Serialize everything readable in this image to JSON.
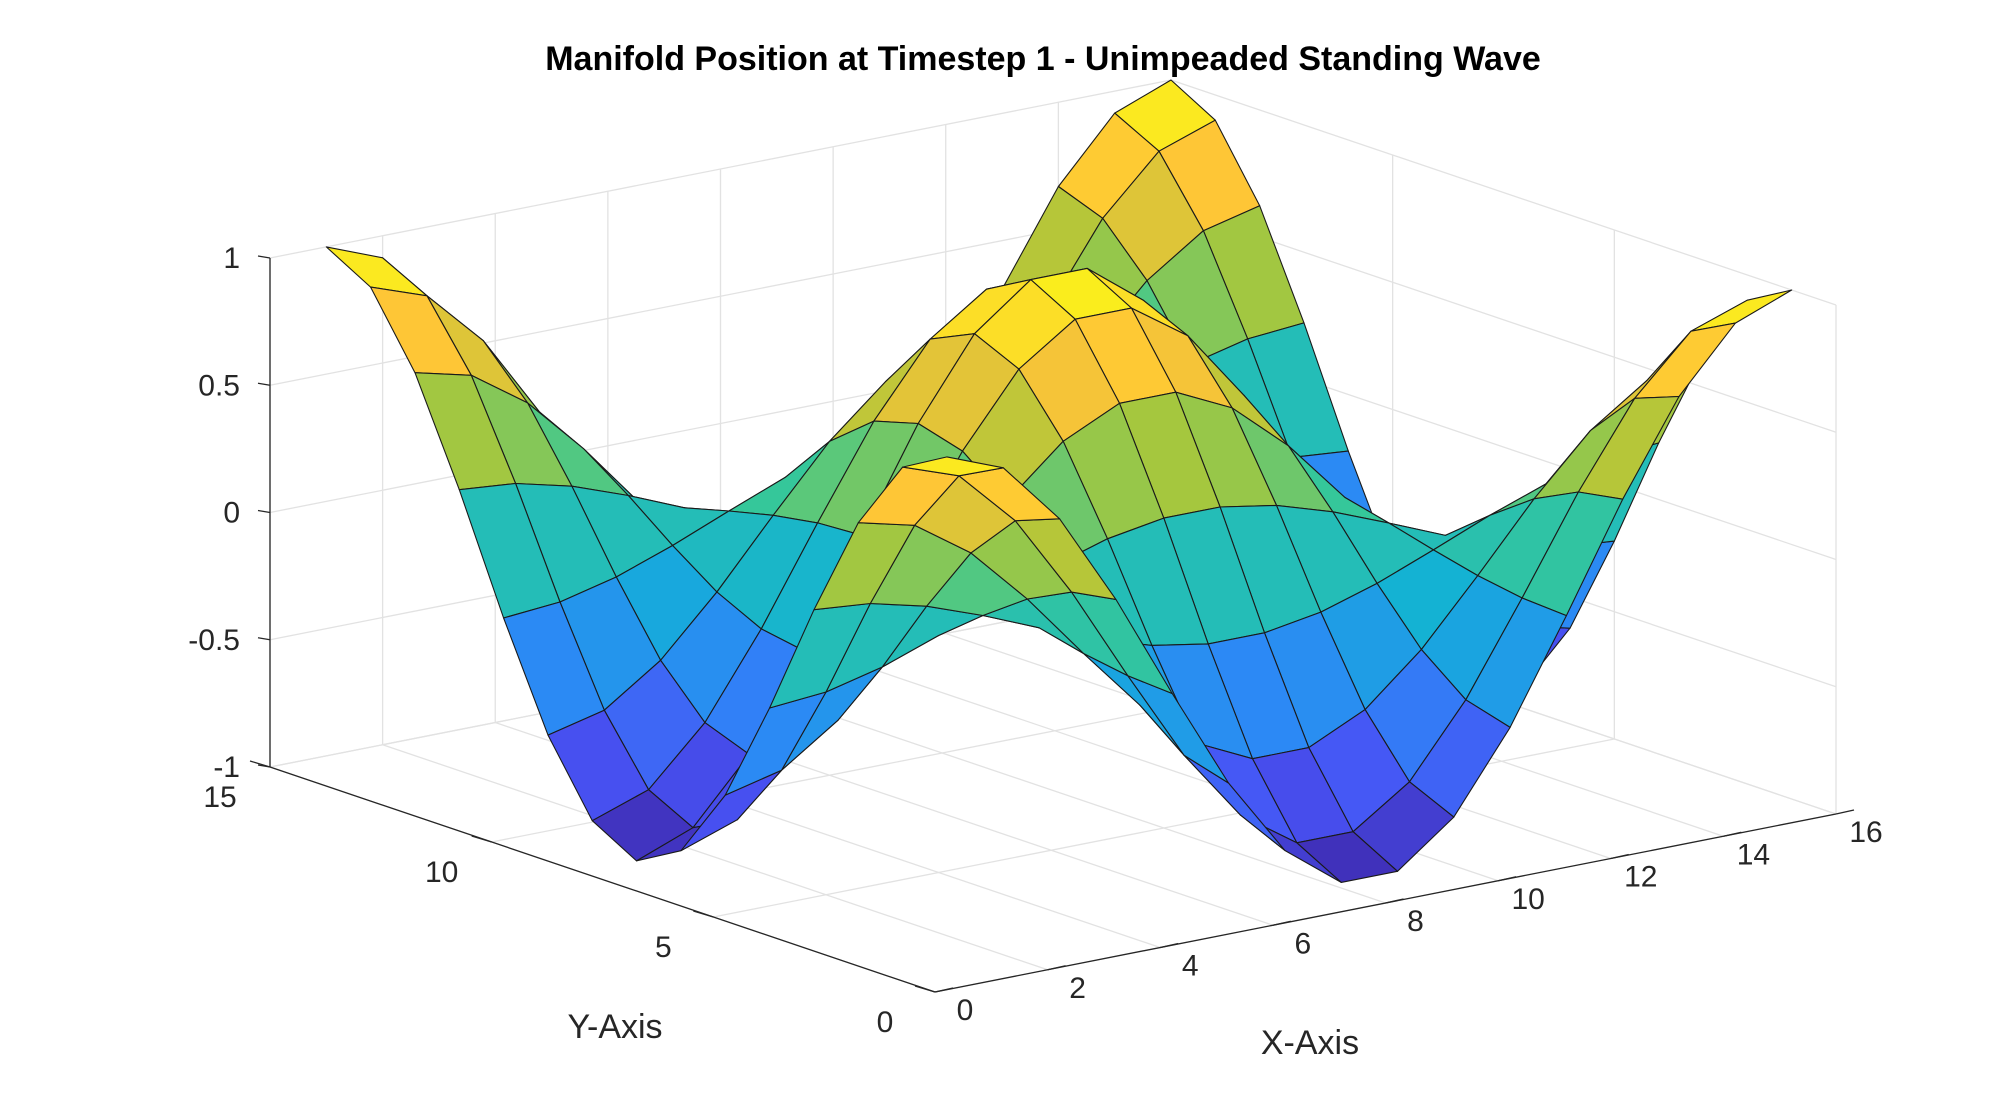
{
  "chart_data": {
    "type": "surface",
    "title": "Manifold Position at Timestep 1 - Unimpeaded Standing Wave",
    "xlabel": "X-Axis",
    "ylabel": "Y-Axis",
    "zlabel": "",
    "xlim": [
      0,
      16
    ],
    "ylim": [
      0,
      15
    ],
    "zlim": [
      -1,
      1
    ],
    "x_ticks": [
      0,
      2,
      4,
      6,
      8,
      10,
      12,
      14,
      16
    ],
    "y_ticks": [
      0,
      5,
      10,
      15
    ],
    "z_ticks": [
      -1,
      -0.5,
      0,
      0.5,
      1
    ],
    "x_tick_labels": [
      "0",
      "2",
      "4",
      "6",
      "8",
      "10",
      "12",
      "14",
      "16"
    ],
    "y_tick_labels": [
      "0",
      "5",
      "10",
      "15"
    ],
    "z_tick_labels": [
      "-1",
      "-0.5",
      "0",
      "0.5",
      "1"
    ],
    "grid": true,
    "colormap": "parula",
    "x_grid": [
      1,
      2,
      3,
      4,
      5,
      6,
      7,
      8,
      9,
      10,
      11,
      12,
      13,
      14,
      15,
      16
    ],
    "y_grid": [
      1,
      2,
      3,
      4,
      5,
      6,
      7,
      8,
      9,
      10,
      11,
      12,
      13,
      14,
      15
    ],
    "z_function": "z = sin(2*pi*(x-1)/15 + pi/2) * sin(2*pi*(y-1)/14 + pi/2)",
    "z_range_observed": [
      -1,
      1
    ]
  }
}
